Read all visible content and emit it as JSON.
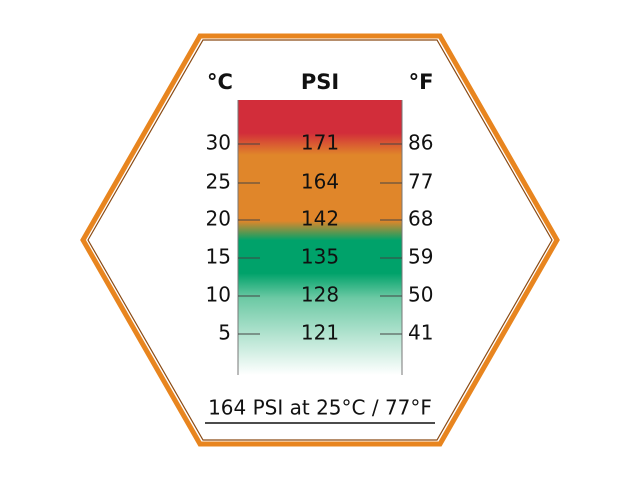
{
  "header": {
    "celsius": "°C",
    "psi": "PSI",
    "fahrenheit": "°F"
  },
  "table": {
    "rows": [
      [
        30,
        171,
        86
      ],
      [
        25,
        164,
        77
      ],
      [
        20,
        142,
        68
      ],
      [
        15,
        135,
        59
      ],
      [
        10,
        128,
        50
      ],
      [
        5,
        121,
        41
      ]
    ]
  },
  "caption": "164 PSI at 25°C / 77°F"
}
